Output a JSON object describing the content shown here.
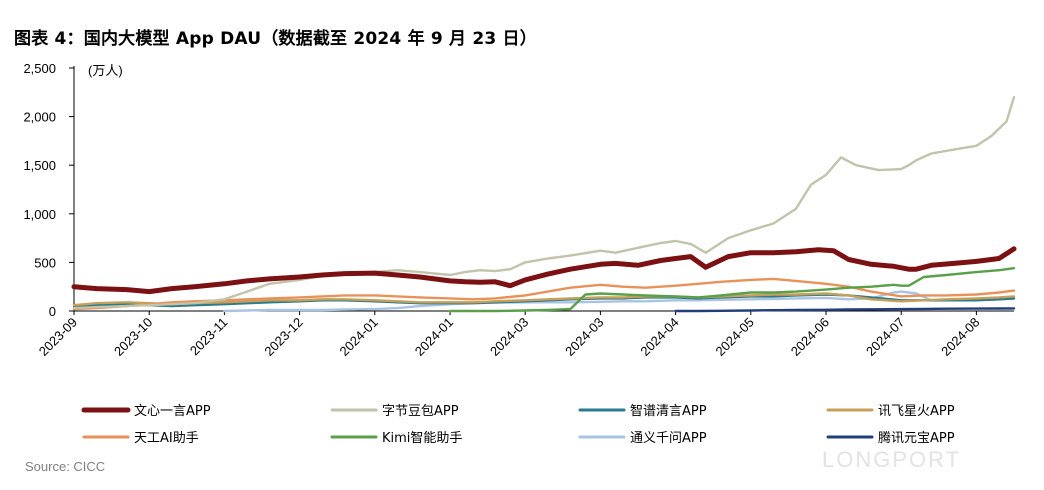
{
  "title": "图表 4：国内大模型 App DAU（数据截至 2024 年 9 月 23 日）",
  "source": "Source: CICC",
  "watermark": "LONGPORT",
  "chart_data": {
    "type": "line",
    "title": "图表 4：国内大模型 App DAU（数据截至 2024 年 9 月 23 日）",
    "unit_label": "(万人)",
    "xlabel": "",
    "ylabel": "",
    "ylim": [
      0,
      2500
    ],
    "yticks": [
      0,
      500,
      1000,
      1500,
      2000,
      2500
    ],
    "ytick_labels": [
      "0",
      "500",
      "1,000",
      "1,500",
      "2,000",
      "2,500"
    ],
    "xticks": [
      0,
      1,
      2,
      3,
      4,
      5,
      6,
      7,
      8,
      9,
      10,
      11,
      12
    ],
    "xtick_labels": [
      "2023-09",
      "2023-10",
      "2023-11",
      "2023-12",
      "2024-01",
      "2024-01",
      "2024-03",
      "2024-03",
      "2024-04",
      "2024-05",
      "2024-06",
      "2024-07",
      "2024-08"
    ],
    "xlim": [
      0,
      12.5
    ],
    "legend_position": "bottom",
    "grid": false,
    "series": [
      {
        "name": "文心一言APP",
        "color": "#7b1113",
        "width": 5,
        "x": [
          0,
          0.3,
          0.7,
          1.0,
          1.3,
          1.6,
          2.0,
          2.3,
          2.6,
          3.0,
          3.3,
          3.6,
          4.0,
          4.3,
          4.6,
          5.0,
          5.2,
          5.4,
          5.6,
          5.8,
          6.0,
          6.3,
          6.6,
          7.0,
          7.2,
          7.5,
          7.8,
          8.0,
          8.2,
          8.4,
          8.7,
          9.0,
          9.3,
          9.6,
          9.9,
          10.1,
          10.3,
          10.6,
          10.9,
          11.1,
          11.2,
          11.4,
          11.7,
          12.0,
          12.3,
          12.5
        ],
        "y": [
          250,
          230,
          220,
          200,
          230,
          250,
          280,
          310,
          330,
          350,
          370,
          385,
          390,
          370,
          350,
          310,
          300,
          295,
          300,
          260,
          320,
          380,
          430,
          480,
          490,
          470,
          520,
          540,
          560,
          450,
          560,
          600,
          600,
          610,
          630,
          620,
          530,
          480,
          460,
          430,
          430,
          470,
          490,
          510,
          540,
          640
        ]
      },
      {
        "name": "字节豆包APP",
        "color": "#c2c3ab",
        "width": 2.4,
        "x": [
          0,
          0.3,
          0.7,
          1.0,
          1.3,
          1.6,
          2.0,
          2.3,
          2.6,
          3.0,
          3.3,
          3.6,
          4.0,
          4.3,
          4.6,
          5.0,
          5.2,
          5.4,
          5.6,
          5.8,
          6.0,
          6.3,
          6.6,
          7.0,
          7.2,
          7.5,
          7.8,
          8.0,
          8.2,
          8.4,
          8.7,
          9.0,
          9.3,
          9.6,
          9.8,
          10.0,
          10.2,
          10.4,
          10.7,
          11.0,
          11.1,
          11.2,
          11.4,
          11.7,
          12.0,
          12.2,
          12.4,
          12.5
        ],
        "y": [
          30,
          40,
          50,
          60,
          70,
          80,
          120,
          200,
          280,
          320,
          360,
          380,
          400,
          420,
          400,
          370,
          400,
          420,
          410,
          430,
          500,
          540,
          570,
          620,
          600,
          650,
          700,
          720,
          690,
          600,
          750,
          830,
          900,
          1050,
          1300,
          1400,
          1580,
          1500,
          1450,
          1460,
          1500,
          1550,
          1620,
          1660,
          1700,
          1800,
          1950,
          2200
        ]
      },
      {
        "name": "智谱清言APP",
        "color": "#2b7a8d",
        "width": 2.4,
        "x": [
          0,
          0.3,
          0.7,
          1.0,
          1.3,
          1.6,
          2.0,
          2.3,
          2.6,
          3.0,
          3.3,
          3.6,
          4.0,
          4.3,
          4.6,
          5.0,
          5.3,
          5.6,
          6.0,
          6.3,
          6.6,
          7.0,
          7.3,
          7.6,
          8.0,
          8.3,
          8.6,
          9.0,
          9.3,
          9.6,
          10.0,
          10.3,
          10.6,
          11.0,
          11.3,
          11.6,
          12.0,
          12.3,
          12.5
        ],
        "y": [
          40,
          60,
          70,
          60,
          50,
          60,
          70,
          80,
          90,
          100,
          110,
          110,
          100,
          90,
          80,
          80,
          80,
          90,
          100,
          110,
          120,
          130,
          130,
          140,
          140,
          130,
          140,
          150,
          150,
          160,
          170,
          160,
          140,
          110,
          110,
          110,
          110,
          120,
          130
        ]
      },
      {
        "name": "讯飞星火APP",
        "color": "#c5a05a",
        "width": 2.4,
        "x": [
          0,
          0.3,
          0.7,
          1.0,
          1.3,
          1.6,
          2.0,
          2.3,
          2.6,
          3.0,
          3.3,
          3.6,
          4.0,
          4.3,
          4.6,
          5.0,
          5.3,
          5.6,
          6.0,
          6.3,
          6.6,
          7.0,
          7.3,
          7.6,
          8.0,
          8.3,
          8.6,
          9.0,
          9.3,
          9.6,
          10.0,
          10.3,
          10.6,
          11.0,
          11.3,
          11.6,
          12.0,
          12.3,
          12.5
        ],
        "y": [
          60,
          80,
          90,
          80,
          70,
          80,
          90,
          100,
          110,
          110,
          120,
          120,
          110,
          100,
          90,
          90,
          90,
          100,
          110,
          120,
          130,
          140,
          140,
          150,
          150,
          140,
          150,
          160,
          170,
          170,
          180,
          160,
          120,
          100,
          110,
          120,
          130,
          140,
          150
        ]
      },
      {
        "name": "天工AI助手",
        "color": "#e8925a",
        "width": 2.4,
        "x": [
          0,
          0.3,
          0.7,
          1.0,
          1.3,
          1.6,
          2.0,
          2.3,
          2.6,
          3.0,
          3.3,
          3.6,
          4.0,
          4.3,
          4.6,
          5.0,
          5.3,
          5.6,
          6.0,
          6.3,
          6.6,
          7.0,
          7.3,
          7.6,
          8.0,
          8.3,
          8.6,
          9.0,
          9.3,
          9.6,
          10.0,
          10.3,
          10.6,
          11.0,
          11.3,
          11.6,
          12.0,
          12.3,
          12.5
        ],
        "y": [
          20,
          30,
          50,
          70,
          90,
          100,
          110,
          120,
          130,
          140,
          150,
          160,
          160,
          150,
          140,
          130,
          120,
          130,
          160,
          200,
          240,
          270,
          250,
          240,
          260,
          280,
          300,
          320,
          330,
          310,
          280,
          250,
          200,
          150,
          160,
          160,
          170,
          190,
          210
        ]
      },
      {
        "name": "Kimi智能助手",
        "color": "#5aa04a",
        "width": 2.4,
        "x": [
          5.0,
          5.3,
          5.6,
          6.0,
          6.3,
          6.6,
          6.8,
          7.0,
          7.3,
          7.6,
          8.0,
          8.3,
          8.6,
          9.0,
          9.3,
          9.6,
          10.0,
          10.3,
          10.6,
          10.9,
          11.0,
          11.1,
          11.3,
          11.6,
          12.0,
          12.3,
          12.5
        ],
        "y": [
          0,
          0,
          0,
          5,
          10,
          20,
          170,
          180,
          170,
          160,
          150,
          140,
          160,
          190,
          190,
          200,
          220,
          240,
          250,
          270,
          260,
          260,
          350,
          370,
          400,
          420,
          440
        ]
      },
      {
        "name": "通义千问APP",
        "color": "#a9c4e2",
        "width": 2.4,
        "x": [
          2.0,
          2.3,
          2.6,
          3.0,
          3.3,
          3.6,
          4.0,
          4.3,
          4.6,
          5.0,
          5.3,
          5.6,
          6.0,
          6.3,
          6.6,
          7.0,
          7.3,
          7.6,
          8.0,
          8.3,
          8.6,
          9.0,
          9.3,
          9.6,
          10.0,
          10.3,
          10.6,
          10.9,
          11.0,
          11.2,
          11.4,
          11.7,
          12.0,
          12.3,
          12.5
        ],
        "y": [
          0,
          5,
          10,
          10,
          10,
          15,
          20,
          30,
          50,
          70,
          80,
          85,
          90,
          90,
          90,
          95,
          100,
          100,
          110,
          110,
          115,
          120,
          125,
          130,
          135,
          120,
          130,
          190,
          200,
          180,
          110,
          110,
          115,
          120,
          130
        ]
      },
      {
        "name": "腾讯元宝APP",
        "color": "#233e7d",
        "width": 2.4,
        "x": [
          8.0,
          8.3,
          8.6,
          9.0,
          9.3,
          9.6,
          10.0,
          10.3,
          10.6,
          11.0,
          11.3,
          11.6,
          12.0,
          12.3,
          12.5
        ],
        "y": [
          0,
          0,
          2,
          5,
          8,
          10,
          12,
          15,
          18,
          20,
          22,
          24,
          25,
          26,
          27
        ]
      }
    ]
  }
}
